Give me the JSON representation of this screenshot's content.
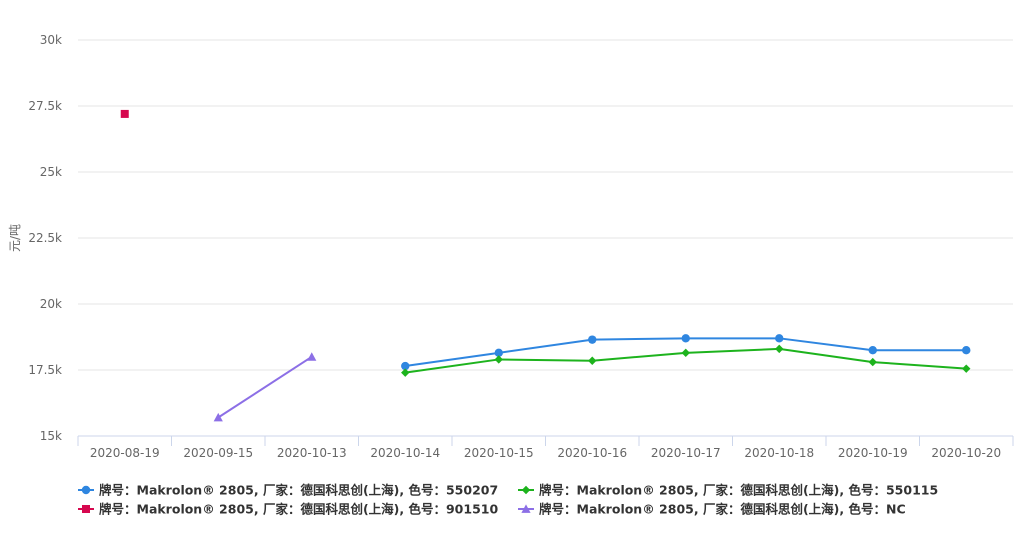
{
  "chart_data": {
    "type": "line",
    "ylabel": "元/吨",
    "ylim": [
      15000,
      30000
    ],
    "yticks": [
      15000,
      17500,
      20000,
      22500,
      25000,
      27500,
      30000
    ],
    "ytick_labels": [
      "15k",
      "17.5k",
      "20k",
      "22.5k",
      "25k",
      "27.5k",
      "30k"
    ],
    "categories": [
      "2020-08-19",
      "2020-09-15",
      "2020-10-13",
      "2020-10-14",
      "2020-10-15",
      "2020-10-16",
      "2020-10-17",
      "2020-10-18",
      "2020-10-19",
      "2020-10-20"
    ],
    "grid": true,
    "legend_position": "bottom",
    "series": [
      {
        "name": "牌号：Makrolon® 2805, 厂家：德国科思创(上海), 色号：550207",
        "color": "#2f86e0",
        "marker": "circle",
        "values": [
          null,
          null,
          null,
          17650,
          18150,
          18650,
          18700,
          18700,
          18250,
          18250
        ]
      },
      {
        "name": "牌号：Makrolon® 2805, 厂家：德国科思创(上海), 色号：550115",
        "color": "#1db31d",
        "marker": "diamond",
        "values": [
          null,
          null,
          null,
          17400,
          17900,
          17850,
          18150,
          18300,
          17800,
          17550
        ]
      },
      {
        "name": "牌号：Makrolon® 2805, 厂家：德国科思创(上海), 色号：901510",
        "color": "#d6084f",
        "marker": "square",
        "values": [
          27200,
          null,
          null,
          null,
          null,
          null,
          null,
          null,
          null,
          null
        ]
      },
      {
        "name": "牌号：Makrolon® 2805, 厂家：德国科思创(上海), 色号：NC",
        "color": "#8c6fe6",
        "marker": "triangle",
        "values": [
          null,
          15700,
          18000,
          null,
          null,
          null,
          null,
          null,
          null,
          null
        ]
      }
    ]
  }
}
